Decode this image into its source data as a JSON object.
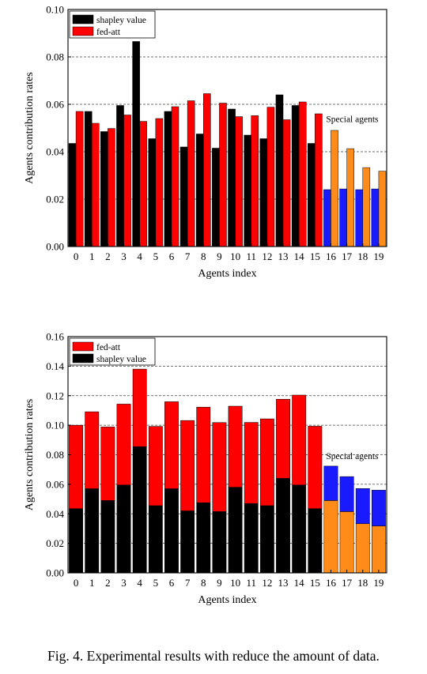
{
  "figure": {
    "caption": "Fig. 4.   Experimental results with reduce the amount of data."
  },
  "colors": {
    "shapley": "#000000",
    "fedatt": "#ff0000",
    "special_fedatt": "#ff8c1a",
    "special_shapley": "#1a1aff"
  },
  "chart_data": [
    {
      "type": "bar",
      "mode": "grouped",
      "xlabel": "Agents index",
      "ylabel": "Agents contribution rates",
      "ylim": [
        0,
        0.1
      ],
      "yticks": [
        "0.00",
        "0.02",
        "0.04",
        "0.06",
        "0.08",
        "0.10"
      ],
      "categories": [
        "0",
        "1",
        "2",
        "3",
        "4",
        "5",
        "6",
        "7",
        "8",
        "9",
        "10",
        "11",
        "12",
        "13",
        "14",
        "15",
        "16",
        "17",
        "18",
        "19"
      ],
      "legend": [
        "shapley value",
        "fed-att"
      ],
      "legend_position": "top-left",
      "annotation": "Special agents",
      "special_from_index": 16,
      "grid": "horizontal-dashed",
      "series": [
        {
          "name": "shapley value",
          "values": [
            0.0435,
            0.057,
            0.0485,
            0.0595,
            0.0865,
            0.0455,
            0.057,
            0.042,
            0.0475,
            0.0415,
            0.058,
            0.047,
            0.0455,
            0.064,
            0.0595,
            0.0435,
            0.024,
            0.0243,
            0.024,
            0.0243
          ]
        },
        {
          "name": "fed-att",
          "values": [
            0.057,
            0.052,
            0.0498,
            0.0555,
            0.0528,
            0.054,
            0.059,
            0.0615,
            0.0645,
            0.0605,
            0.0548,
            0.0552,
            0.0588,
            0.0535,
            0.061,
            0.056,
            0.049,
            0.0413,
            0.0333,
            0.0318
          ]
        }
      ]
    },
    {
      "type": "bar",
      "mode": "stacked",
      "xlabel": "Agents index",
      "ylabel": "Agents contribution rates",
      "ylim": [
        0,
        0.16
      ],
      "yticks": [
        "0.00",
        "0.02",
        "0.04",
        "0.06",
        "0.08",
        "0.10",
        "0.12",
        "0.14",
        "0.16"
      ],
      "categories": [
        "0",
        "1",
        "2",
        "3",
        "4",
        "5",
        "6",
        "7",
        "8",
        "9",
        "10",
        "11",
        "12",
        "13",
        "14",
        "15",
        "16",
        "17",
        "18",
        "19"
      ],
      "legend": [
        "fed-att",
        "shapley value"
      ],
      "legend_position": "top-left",
      "annotation": "Special agents",
      "special_from_index": 16,
      "grid": "horizontal-dashed",
      "series": [
        {
          "name": "shapley value",
          "values": [
            0.0435,
            0.057,
            0.049,
            0.0595,
            0.0855,
            0.0455,
            0.057,
            0.042,
            0.0475,
            0.0415,
            0.058,
            0.047,
            0.0455,
            0.064,
            0.0595,
            0.0435,
            0.049,
            0.0415,
            0.0333,
            0.0318
          ]
        },
        {
          "name": "fed-att",
          "values": [
            0.0565,
            0.0521,
            0.0498,
            0.0548,
            0.0525,
            0.0537,
            0.0589,
            0.0612,
            0.0647,
            0.0603,
            0.0549,
            0.0549,
            0.0588,
            0.0536,
            0.0609,
            0.0558,
            0.0233,
            0.0237,
            0.0238,
            0.0242
          ]
        }
      ]
    }
  ]
}
